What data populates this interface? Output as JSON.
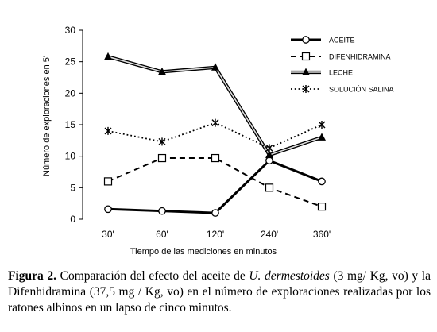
{
  "chart_data": {
    "type": "line",
    "categories": [
      "30'",
      "60'",
      "120'",
      "240'",
      "360'"
    ],
    "ylim": [
      0,
      30
    ],
    "yticks": [
      "0",
      "5",
      "10",
      "15",
      "20",
      "25",
      "30"
    ],
    "xlabel": "Tiempo de las mediciones en minutos",
    "ylabel": "Número de exploraciones en 5'",
    "legend_position": "top-right",
    "series": [
      {
        "name": "ACEITE",
        "values": [
          1.6,
          1.3,
          1.0,
          9.3,
          6.0
        ],
        "style": "solid-thick",
        "marker": "circle-open",
        "color": "#000000"
      },
      {
        "name": "DIFENHIDRAMINA",
        "values": [
          6.0,
          9.7,
          9.7,
          5.0,
          2.0
        ],
        "style": "dashed",
        "marker": "square-open",
        "color": "#000000"
      },
      {
        "name": "LECHE",
        "values": [
          25.8,
          23.4,
          24.1,
          10.2,
          13.0
        ],
        "style": "double",
        "marker": "triangle-filled",
        "color": "#000000"
      },
      {
        "name": "SOLUCIÓN SALINA",
        "values": [
          14.0,
          12.3,
          15.3,
          11.3,
          15.0
        ],
        "style": "dotted",
        "marker": "star",
        "color": "#000000"
      }
    ]
  },
  "caption": {
    "label": "Figura 2.",
    "text_1": " Comparación del efecto del aceite de ",
    "species": "U. dermestoides",
    "text_2": " (3 mg/ Kg, vo) y la Difenhidramina (37,5 mg / Kg, vo) en el número de exploraciones realizadas por los ratones albinos en un lapso de cinco minutos."
  }
}
